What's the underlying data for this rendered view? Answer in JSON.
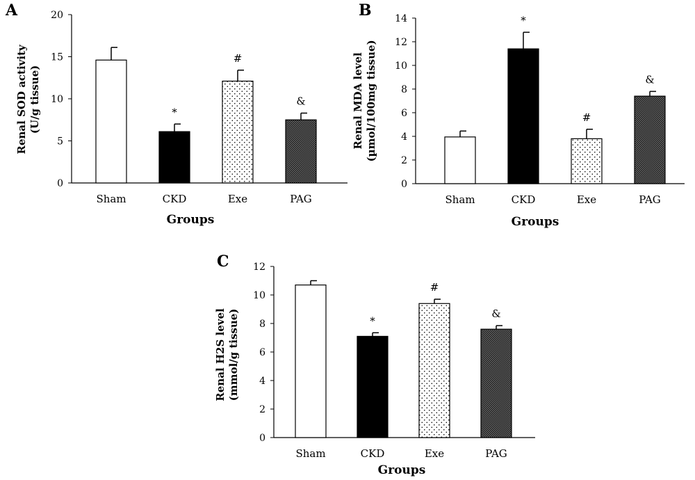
{
  "figure": {
    "panels": [
      "A",
      "B",
      "C"
    ]
  },
  "chart_data": [
    {
      "panel": "A",
      "type": "bar",
      "categories": [
        "Sham",
        "CKD",
        "Exe",
        "PAG"
      ],
      "values": [
        14.6,
        6.1,
        12.1,
        7.5
      ],
      "errors": [
        1.5,
        0.9,
        1.3,
        0.8
      ],
      "annotations": [
        "",
        "*",
        "#",
        "&"
      ],
      "fills": [
        "white",
        "black",
        "dots",
        "crosshatch"
      ],
      "ylabel_lines": [
        "Renal SOD activity",
        "(U/g tissue)"
      ],
      "xlabel": "Groups",
      "ylim": [
        0,
        20
      ],
      "yticks": [
        0,
        5,
        10,
        15,
        20
      ],
      "grid": false
    },
    {
      "panel": "B",
      "type": "bar",
      "categories": [
        "Sham",
        "CKD",
        "Exe",
        "PAG"
      ],
      "values": [
        3.95,
        11.4,
        3.8,
        7.4
      ],
      "errors": [
        0.5,
        1.4,
        0.8,
        0.4
      ],
      "annotations": [
        "",
        "*",
        "#",
        "&"
      ],
      "fills": [
        "white",
        "black",
        "dots",
        "crosshatch"
      ],
      "ylabel_lines": [
        "Renal MDA level",
        "(µmol/100mg tissue)"
      ],
      "xlabel": "Groups",
      "ylim": [
        0,
        14
      ],
      "yticks": [
        0,
        2,
        4,
        6,
        8,
        10,
        12,
        14
      ],
      "grid": false
    },
    {
      "panel": "C",
      "type": "bar",
      "categories": [
        "Sham",
        "CKD",
        "Exe",
        "PAG"
      ],
      "values": [
        10.7,
        7.1,
        9.4,
        7.6
      ],
      "errors": [
        0.3,
        0.25,
        0.3,
        0.25
      ],
      "annotations": [
        "",
        "*",
        "#",
        "&"
      ],
      "fills": [
        "white",
        "black",
        "dots",
        "crosshatch"
      ],
      "ylabel_lines": [
        "Renal H2S level",
        "(mmol/g tissue)"
      ],
      "xlabel": "Groups",
      "ylim": [
        0,
        12
      ],
      "yticks": [
        0,
        2,
        4,
        6,
        8,
        10,
        12
      ],
      "grid": false
    }
  ]
}
